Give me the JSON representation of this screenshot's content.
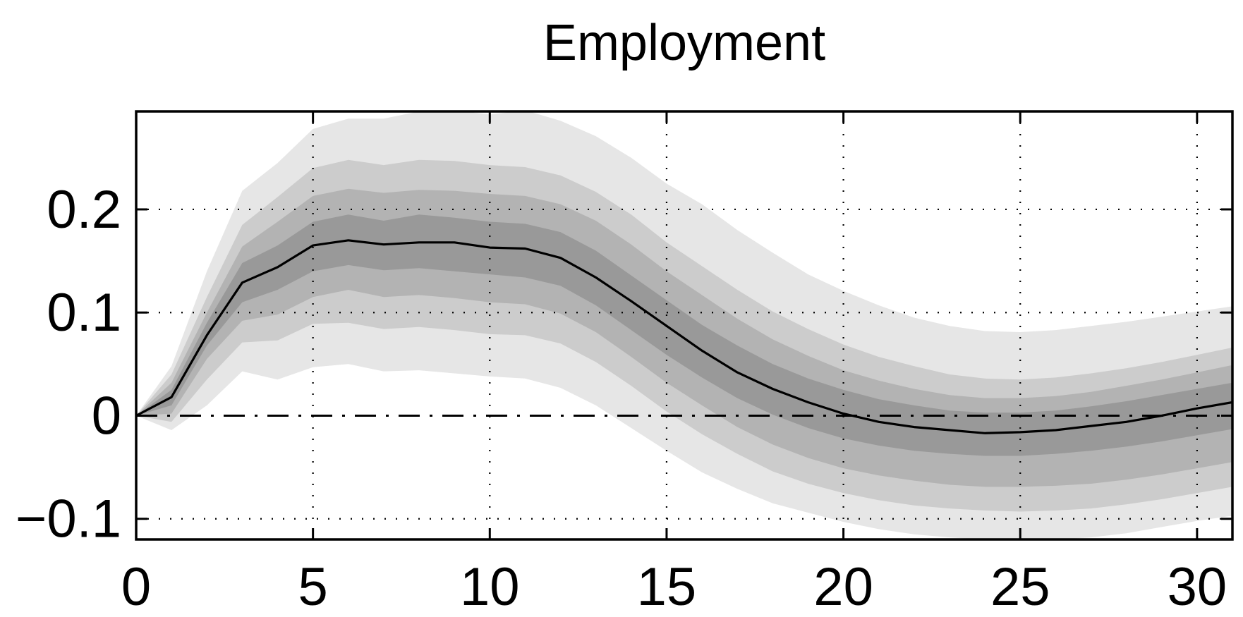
{
  "chart_data": {
    "type": "area",
    "title": "Employment",
    "xlabel": "",
    "ylabel": "",
    "xlim": [
      0,
      31
    ],
    "ylim": [
      -0.12,
      0.295
    ],
    "xticks": [
      0,
      5,
      10,
      15,
      20,
      25,
      30
    ],
    "xtick_labels": [
      "0",
      "5",
      "10",
      "15",
      "20",
      "25",
      "30"
    ],
    "yticks": [
      -0.1,
      0,
      0.1,
      0.2
    ],
    "ytick_labels": [
      "−0.1",
      "0",
      "0.1",
      "0.2"
    ],
    "grid": "dotted",
    "zero_line": "dash-dot",
    "x": [
      0,
      1,
      2,
      3,
      4,
      5,
      6,
      7,
      8,
      9,
      10,
      11,
      12,
      13,
      14,
      15,
      16,
      17,
      18,
      19,
      20,
      21,
      22,
      23,
      24,
      25,
      26,
      27,
      28,
      29,
      30,
      31
    ],
    "median": [
      0,
      0.018,
      0.078,
      0.129,
      0.144,
      0.165,
      0.17,
      0.166,
      0.168,
      0.168,
      0.163,
      0.162,
      0.153,
      0.134,
      0.111,
      0.087,
      0.063,
      0.042,
      0.026,
      0.013,
      0.002,
      -0.006,
      -0.011,
      -0.014,
      -0.017,
      -0.016,
      -0.014,
      -0.01,
      -0.006,
      0.0,
      0.007,
      0.013
    ],
    "bands": [
      {
        "level": "outer",
        "color": "#e6e6e6",
        "upper": [
          0,
          0.048,
          0.14,
          0.218,
          0.245,
          0.278,
          0.288,
          0.288,
          0.295,
          0.296,
          0.292,
          0.296,
          0.286,
          0.271,
          0.25,
          0.225,
          0.205,
          0.18,
          0.158,
          0.137,
          0.121,
          0.107,
          0.095,
          0.087,
          0.082,
          0.081,
          0.083,
          0.087,
          0.091,
          0.096,
          0.101,
          0.106
        ],
        "lower": [
          0,
          -0.014,
          0.01,
          0.043,
          0.035,
          0.047,
          0.05,
          0.043,
          0.044,
          0.041,
          0.038,
          0.036,
          0.027,
          0.01,
          -0.012,
          -0.034,
          -0.055,
          -0.071,
          -0.085,
          -0.094,
          -0.103,
          -0.11,
          -0.115,
          -0.118,
          -0.12,
          -0.12,
          -0.12,
          -0.118,
          -0.114,
          -0.108,
          -0.102,
          -0.097
        ]
      },
      {
        "level": "second",
        "color": "#cccccc",
        "upper": [
          0,
          0.04,
          0.115,
          0.185,
          0.212,
          0.24,
          0.248,
          0.243,
          0.248,
          0.247,
          0.243,
          0.241,
          0.233,
          0.217,
          0.195,
          0.168,
          0.145,
          0.122,
          0.101,
          0.084,
          0.069,
          0.057,
          0.048,
          0.04,
          0.036,
          0.035,
          0.037,
          0.041,
          0.046,
          0.052,
          0.059,
          0.066
        ],
        "lower": [
          0,
          -0.006,
          0.035,
          0.071,
          0.073,
          0.089,
          0.09,
          0.084,
          0.086,
          0.083,
          0.079,
          0.078,
          0.07,
          0.052,
          0.029,
          0.004,
          -0.018,
          -0.037,
          -0.054,
          -0.066,
          -0.075,
          -0.082,
          -0.087,
          -0.09,
          -0.092,
          -0.093,
          -0.092,
          -0.09,
          -0.086,
          -0.081,
          -0.075,
          -0.069
        ]
      },
      {
        "level": "third",
        "color": "#b3b3b3",
        "upper": [
          0,
          0.032,
          0.1,
          0.164,
          0.188,
          0.213,
          0.22,
          0.216,
          0.219,
          0.218,
          0.215,
          0.213,
          0.205,
          0.189,
          0.166,
          0.14,
          0.117,
          0.094,
          0.074,
          0.058,
          0.044,
          0.034,
          0.026,
          0.02,
          0.017,
          0.017,
          0.019,
          0.023,
          0.029,
          0.035,
          0.042,
          0.049
        ],
        "lower": [
          0,
          0.002,
          0.055,
          0.092,
          0.098,
          0.115,
          0.122,
          0.115,
          0.117,
          0.114,
          0.11,
          0.108,
          0.099,
          0.081,
          0.057,
          0.032,
          0.01,
          -0.011,
          -0.028,
          -0.041,
          -0.051,
          -0.058,
          -0.063,
          -0.067,
          -0.069,
          -0.069,
          -0.068,
          -0.066,
          -0.062,
          -0.057,
          -0.051,
          -0.045
        ]
      },
      {
        "level": "inner",
        "color": "#999999",
        "upper": [
          0,
          0.025,
          0.09,
          0.148,
          0.165,
          0.188,
          0.195,
          0.189,
          0.195,
          0.192,
          0.188,
          0.186,
          0.178,
          0.16,
          0.136,
          0.112,
          0.088,
          0.068,
          0.05,
          0.036,
          0.025,
          0.016,
          0.01,
          0.005,
          0.003,
          0.003,
          0.005,
          0.009,
          0.014,
          0.02,
          0.026,
          0.032
        ],
        "lower": [
          0,
          0.01,
          0.068,
          0.11,
          0.122,
          0.14,
          0.146,
          0.141,
          0.143,
          0.14,
          0.137,
          0.134,
          0.126,
          0.107,
          0.083,
          0.059,
          0.037,
          0.017,
          0.001,
          -0.012,
          -0.022,
          -0.029,
          -0.034,
          -0.037,
          -0.039,
          -0.039,
          -0.037,
          -0.034,
          -0.03,
          -0.025,
          -0.019,
          -0.013
        ]
      }
    ]
  }
}
